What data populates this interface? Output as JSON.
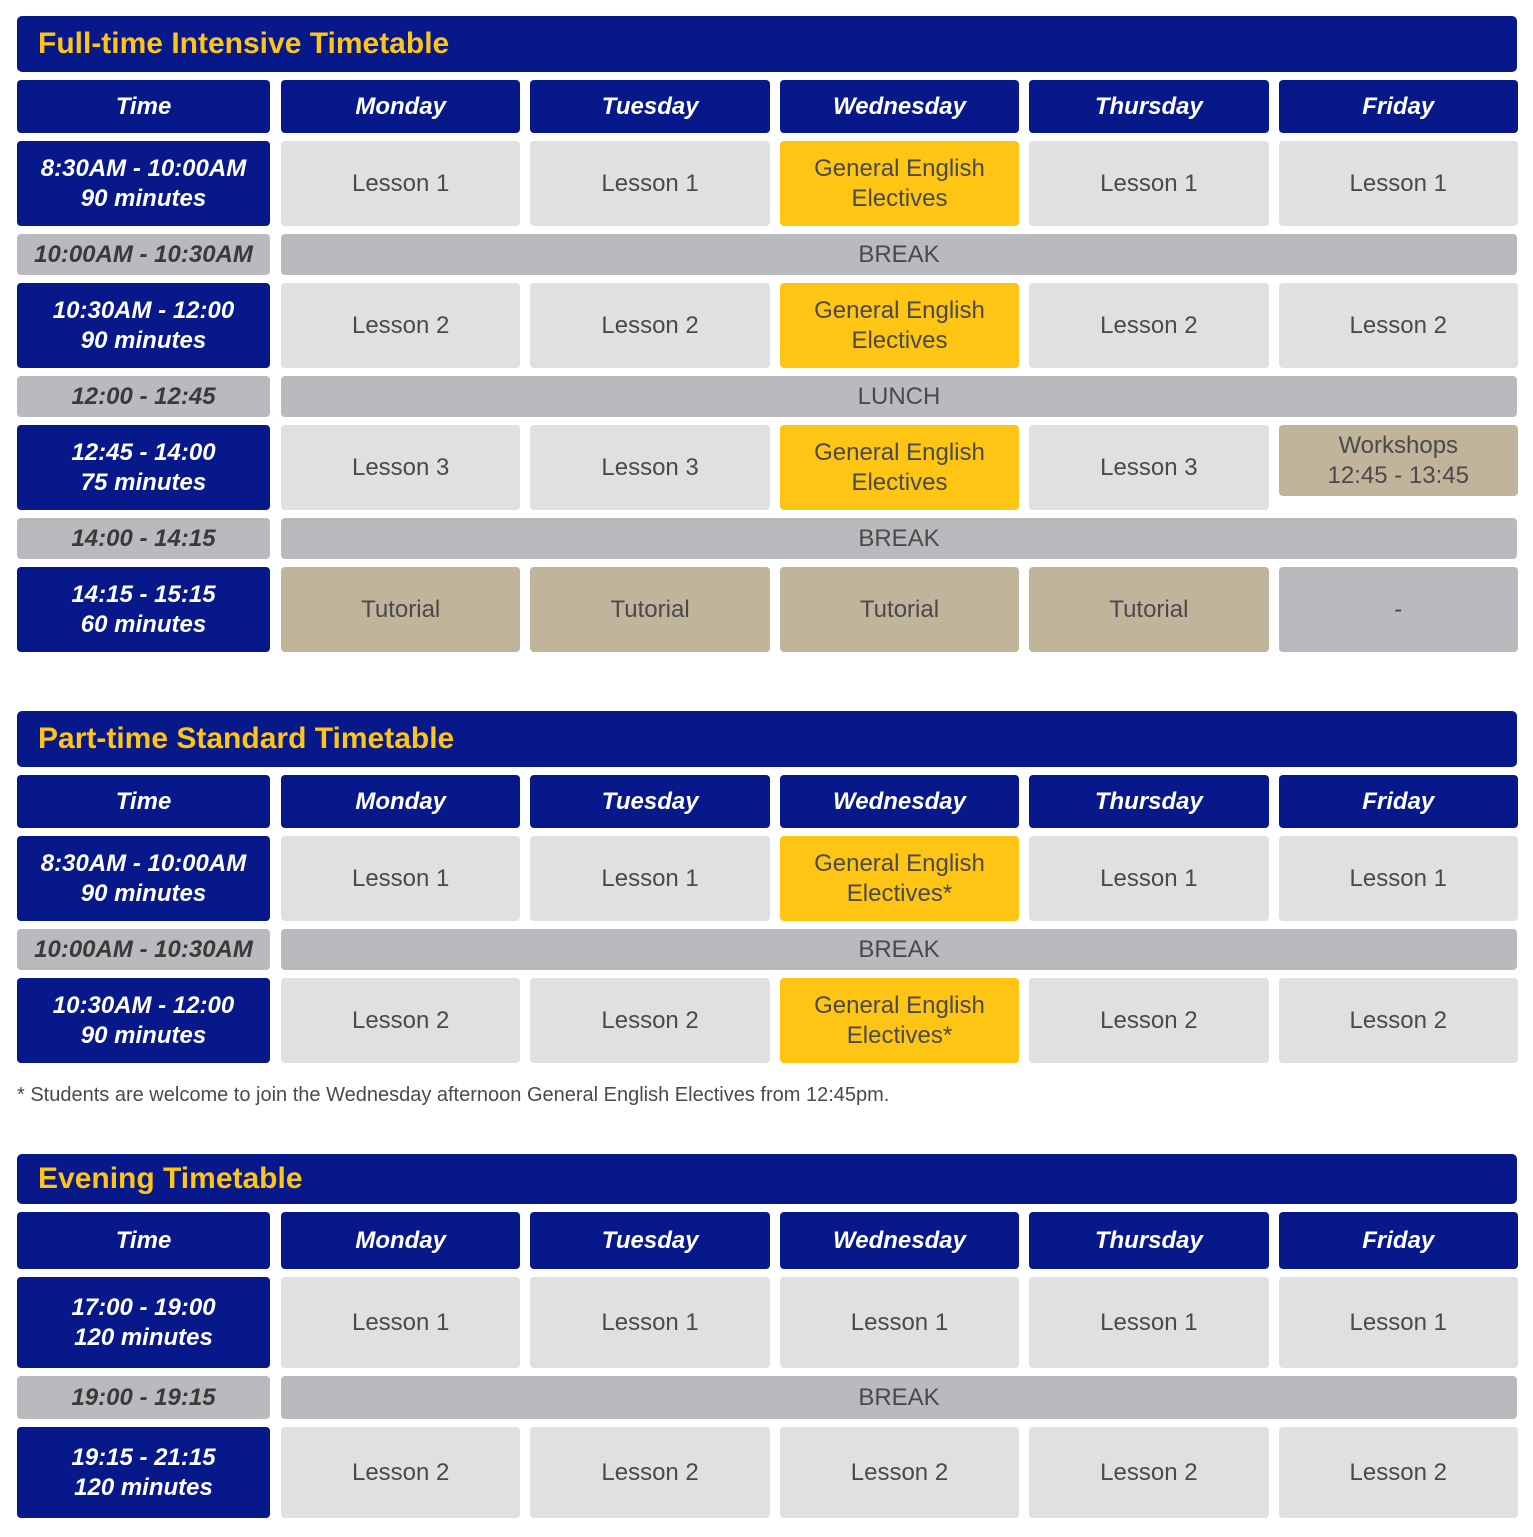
{
  "colors": {
    "navy": "#06188a",
    "yellow": "#fec515",
    "lesson": "#dfe0e2",
    "break": "#b9babe",
    "tutorial": "#c0b59a"
  },
  "sections": [
    {
      "title": "Full-time Intensive Timetable",
      "headers": [
        "Time",
        "Monday",
        "Tuesday",
        "Wednesday",
        "Thursday",
        "Friday"
      ],
      "rows": [
        {
          "type": "lesson",
          "time": "8:30AM - 10:00AM\n90 minutes",
          "cells": [
            {
              "text": "Lesson 1",
              "style": "lesson"
            },
            {
              "text": "Lesson 1",
              "style": "lesson"
            },
            {
              "text": "General English\nElectives",
              "style": "elective"
            },
            {
              "text": "Lesson 1",
              "style": "lesson"
            },
            {
              "text": "Lesson 1",
              "style": "lesson"
            }
          ]
        },
        {
          "type": "break",
          "time": "10:00AM - 10:30AM",
          "label": "BREAK"
        },
        {
          "type": "lesson",
          "time": "10:30AM - 12:00\n90 minutes",
          "cells": [
            {
              "text": "Lesson 2",
              "style": "lesson"
            },
            {
              "text": "Lesson 2",
              "style": "lesson"
            },
            {
              "text": "General English\nElectives",
              "style": "elective"
            },
            {
              "text": "Lesson 2",
              "style": "lesson"
            },
            {
              "text": "Lesson 2",
              "style": "lesson"
            }
          ]
        },
        {
          "type": "break",
          "time": "12:00 - 12:45",
          "label": "LUNCH"
        },
        {
          "type": "lesson",
          "time": "12:45 - 14:00\n75 minutes",
          "cells": [
            {
              "text": "Lesson 3",
              "style": "lesson"
            },
            {
              "text": "Lesson 3",
              "style": "lesson"
            },
            {
              "text": "General English\nElectives",
              "style": "elective"
            },
            {
              "text": "Lesson 3",
              "style": "lesson"
            },
            {
              "text": "Workshops\n12:45 - 13:45",
              "style": "workshop"
            }
          ]
        },
        {
          "type": "break",
          "time": "14:00 - 14:15",
          "label": "BREAK"
        },
        {
          "type": "lesson",
          "time": "14:15 - 15:15\n60 minutes",
          "cells": [
            {
              "text": "Tutorial",
              "style": "tutorial"
            },
            {
              "text": "Tutorial",
              "style": "tutorial"
            },
            {
              "text": "Tutorial",
              "style": "tutorial"
            },
            {
              "text": "Tutorial",
              "style": "tutorial"
            },
            {
              "text": "-",
              "style": "none"
            }
          ]
        }
      ]
    },
    {
      "title": "Part-time Standard Timetable",
      "headers": [
        "Time",
        "Monday",
        "Tuesday",
        "Wednesday",
        "Thursday",
        "Friday"
      ],
      "rows": [
        {
          "type": "lesson",
          "time": "8:30AM - 10:00AM\n90 minutes",
          "cells": [
            {
              "text": "Lesson 1",
              "style": "lesson"
            },
            {
              "text": "Lesson 1",
              "style": "lesson"
            },
            {
              "text": "General English\nElectives*",
              "style": "elective"
            },
            {
              "text": "Lesson 1",
              "style": "lesson"
            },
            {
              "text": "Lesson 1",
              "style": "lesson"
            }
          ]
        },
        {
          "type": "break",
          "time": "10:00AM - 10:30AM",
          "label": "BREAK"
        },
        {
          "type": "lesson",
          "time": "10:30AM - 12:00\n90 minutes",
          "cells": [
            {
              "text": "Lesson 2",
              "style": "lesson"
            },
            {
              "text": "Lesson 2",
              "style": "lesson"
            },
            {
              "text": "General English\nElectives*",
              "style": "elective"
            },
            {
              "text": "Lesson 2",
              "style": "lesson"
            },
            {
              "text": "Lesson 2",
              "style": "lesson"
            }
          ]
        }
      ]
    },
    {
      "title": "Evening Timetable",
      "headers": [
        "Time",
        "Monday",
        "Tuesday",
        "Wednesday",
        "Thursday",
        "Friday"
      ],
      "rows": [
        {
          "type": "lesson",
          "time": "17:00 - 19:00\n120 minutes",
          "cells": [
            {
              "text": "Lesson 1",
              "style": "lesson"
            },
            {
              "text": "Lesson 1",
              "style": "lesson"
            },
            {
              "text": "Lesson 1",
              "style": "lesson"
            },
            {
              "text": "Lesson 1",
              "style": "lesson"
            },
            {
              "text": "Lesson 1",
              "style": "lesson"
            }
          ]
        },
        {
          "type": "break",
          "time": "19:00 - 19:15",
          "label": "BREAK"
        },
        {
          "type": "lesson",
          "time": "19:15 - 21:15\n120 minutes",
          "cells": [
            {
              "text": "Lesson 2",
              "style": "lesson"
            },
            {
              "text": "Lesson 2",
              "style": "lesson"
            },
            {
              "text": "Lesson 2",
              "style": "lesson"
            },
            {
              "text": "Lesson 2",
              "style": "lesson"
            },
            {
              "text": "Lesson 2",
              "style": "lesson"
            }
          ]
        }
      ]
    }
  ],
  "footnote": "* Students are welcome to join the Wednesday afternoon General English Electives from 12:45pm."
}
